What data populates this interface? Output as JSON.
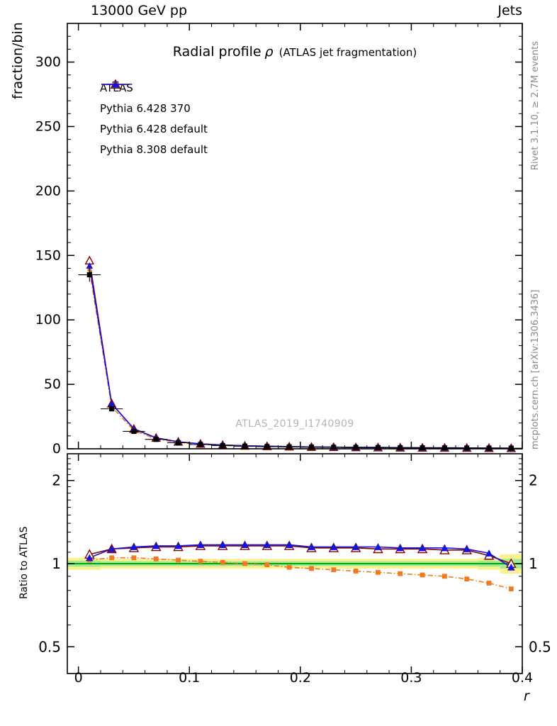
{
  "header": {
    "left": "13000 GeV pp",
    "right": "Jets"
  },
  "title": {
    "main": "Radial profile",
    "rho": "ρ",
    "sub": "(ATLAS jet fragmentation)"
  },
  "labels": {
    "ylabel_top": "fraction/bin",
    "ylabel_ratio": "Ratio to ATLAS",
    "xlabel": "r"
  },
  "watermark": "ATLAS_2019_I1740909",
  "side_notes": {
    "rivet": "Rivet 3.1.10, ≥ 2.7M events",
    "mcplots": "mcplots.cern.ch [arXiv:1306.3436]"
  },
  "chart_data": {
    "type": "line",
    "title": "Radial profile ρ (ATLAS jet fragmentation)",
    "xlabel": "r",
    "ylabel": "fraction/bin",
    "ratio_ylabel": "Ratio to ATLAS",
    "xlim": [
      -0.01,
      0.4
    ],
    "ylim_top": [
      0,
      330
    ],
    "ylim_ratio": [
      0.4,
      2.5
    ],
    "ratio_scale": "log",
    "grid": false,
    "legend_position": "top-left",
    "x_ticks": [
      {
        "v": 0,
        "label": "0"
      },
      {
        "v": 0.1,
        "label": "0.1"
      },
      {
        "v": 0.2,
        "label": "0.2"
      },
      {
        "v": 0.3,
        "label": "0.3"
      },
      {
        "v": 0.4,
        "label": "0.4"
      }
    ],
    "y_ticks_top": [
      0,
      50,
      100,
      150,
      200,
      250,
      300
    ],
    "y_ticks_ratio": [
      {
        "v": 0.5,
        "label": "0.5"
      },
      {
        "v": 1,
        "label": "1"
      },
      {
        "v": 2,
        "label": "2"
      }
    ],
    "x": [
      0.01,
      0.03,
      0.05,
      0.07,
      0.09,
      0.11,
      0.13,
      0.15,
      0.17,
      0.19,
      0.21,
      0.23,
      0.25,
      0.27,
      0.29,
      0.31,
      0.33,
      0.35,
      0.37,
      0.39
    ],
    "series": [
      {
        "name": "ATLAS",
        "color": "#000000",
        "marker": "square-filled",
        "line": "none",
        "values": [
          135,
          31,
          13.5,
          7.3,
          4.7,
          3.3,
          2.5,
          2.0,
          1.7,
          1.45,
          1.25,
          1.1,
          1.0,
          0.9,
          0.8,
          0.72,
          0.65,
          0.58,
          0.52,
          0.47
        ]
      },
      {
        "name": "Pythia 6.428 370",
        "color": "#8b0000",
        "marker": "triangle-open",
        "line": "solid",
        "values": [
          146,
          35,
          15.4,
          8.4,
          5.4,
          3.8,
          2.9,
          2.32,
          1.97,
          1.68,
          1.43,
          1.25,
          1.14,
          1.02,
          0.9,
          0.81,
          0.73,
          0.65,
          0.56,
          0.47
        ],
        "ratio": [
          1.08,
          1.13,
          1.14,
          1.15,
          1.15,
          1.16,
          1.16,
          1.16,
          1.16,
          1.16,
          1.14,
          1.14,
          1.14,
          1.13,
          1.13,
          1.13,
          1.12,
          1.12,
          1.07,
          1.0
        ]
      },
      {
        "name": "Pythia 6.428 default",
        "color": "#ee7a21",
        "marker": "square-filled-small",
        "line": "dashdot",
        "values": [
          139,
          32.6,
          14.2,
          7.6,
          4.84,
          3.37,
          2.53,
          2.0,
          1.68,
          1.41,
          1.2,
          1.05,
          0.94,
          0.84,
          0.74,
          0.66,
          0.59,
          0.51,
          0.44,
          0.38
        ],
        "ratio": [
          1.03,
          1.05,
          1.05,
          1.04,
          1.03,
          1.02,
          1.01,
          1.0,
          0.99,
          0.97,
          0.96,
          0.95,
          0.94,
          0.93,
          0.92,
          0.91,
          0.9,
          0.88,
          0.85,
          0.81
        ]
      },
      {
        "name": "Pythia 8.308 default",
        "color": "#1414e0",
        "marker": "triangle-filled",
        "line": "solid",
        "values": [
          142,
          35,
          15.5,
          8.5,
          5.45,
          3.86,
          2.93,
          2.34,
          1.99,
          1.7,
          1.44,
          1.27,
          1.15,
          1.04,
          0.91,
          0.82,
          0.74,
          0.66,
          0.57,
          0.46
        ],
        "ratio": [
          1.05,
          1.13,
          1.15,
          1.16,
          1.16,
          1.17,
          1.17,
          1.17,
          1.17,
          1.17,
          1.15,
          1.15,
          1.15,
          1.15,
          1.14,
          1.14,
          1.14,
          1.13,
          1.09,
          0.97
        ]
      }
    ],
    "ratio_band": {
      "edges": [
        -0.01,
        0.02,
        0.04,
        0.06,
        0.08,
        0.1,
        0.12,
        0.14,
        0.16,
        0.18,
        0.2,
        0.22,
        0.24,
        0.26,
        0.28,
        0.3,
        0.32,
        0.34,
        0.36,
        0.38,
        0.4
      ],
      "yellow_halfwidth": [
        0.05,
        0.04,
        0.04,
        0.04,
        0.04,
        0.04,
        0.04,
        0.04,
        0.04,
        0.04,
        0.04,
        0.04,
        0.04,
        0.04,
        0.04,
        0.04,
        0.04,
        0.04,
        0.05,
        0.08
      ],
      "yellow_color": "#f9f18c",
      "green_color": "#a6e89a",
      "centerline_color": "#00a800",
      "center": 1.0
    }
  }
}
